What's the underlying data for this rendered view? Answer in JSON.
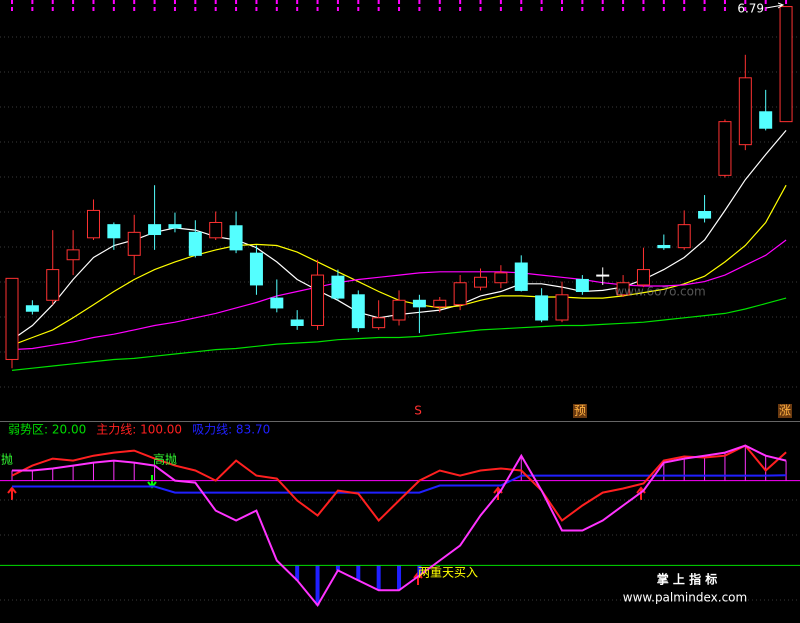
{
  "chart_data": [
    {
      "type": "candlestick",
      "open": [
        3.57,
        4.06,
        4.11,
        4.48,
        4.68,
        4.8,
        4.52,
        4.8,
        4.8,
        4.73,
        4.68,
        4.79,
        4.54,
        4.13,
        3.93,
        3.88,
        4.33,
        4.16,
        3.86,
        3.93,
        4.11,
        4.05,
        4.07,
        4.23,
        4.27,
        4.45,
        4.15,
        3.93,
        4.3,
        4.34,
        4.16,
        4.25,
        4.61,
        4.59,
        4.92,
        5.25,
        5.53,
        5.83,
        5.74
      ],
      "high": [
        4.31,
        4.11,
        4.75,
        4.75,
        5.03,
        4.82,
        4.89,
        5.16,
        4.91,
        4.84,
        4.92,
        4.92,
        4.61,
        4.3,
        4.02,
        4.48,
        4.39,
        4.2,
        4.11,
        4.2,
        4.16,
        4.14,
        4.34,
        4.4,
        4.43,
        4.52,
        4.22,
        4.28,
        4.34,
        4.41,
        4.34,
        4.59,
        4.71,
        4.93,
        5.07,
        5.76,
        6.35,
        6.03,
        6.79
      ],
      "low": [
        3.49,
        3.98,
        4.07,
        4.34,
        4.66,
        4.57,
        4.34,
        4.57,
        4.73,
        4.5,
        4.66,
        4.54,
        4.16,
        4.0,
        3.84,
        3.84,
        4.11,
        3.82,
        3.84,
        3.88,
        3.81,
        4.0,
        4.02,
        4.2,
        4.22,
        4.19,
        3.91,
        3.91,
        4.16,
        4.25,
        4.14,
        4.23,
        4.57,
        4.57,
        4.82,
        5.23,
        5.48,
        5.66,
        5.74
      ],
      "close": [
        4.31,
        4.01,
        4.39,
        4.57,
        4.93,
        4.68,
        4.73,
        4.71,
        4.77,
        4.52,
        4.82,
        4.57,
        4.25,
        4.04,
        3.88,
        4.34,
        4.13,
        3.86,
        3.95,
        4.11,
        4.05,
        4.11,
        4.27,
        4.32,
        4.36,
        4.2,
        3.93,
        4.16,
        4.19,
        4.34,
        4.27,
        4.39,
        4.59,
        4.8,
        4.86,
        5.74,
        6.14,
        5.68,
        6.79
      ],
      "colors": {
        "up": "#ff3232",
        "down": "#54ffff",
        "flat": "#ffffff"
      },
      "series": [
        {
          "color": "#ffffff",
          "values": [
            3.75,
            3.88,
            4.07,
            4.3,
            4.5,
            4.61,
            4.66,
            4.73,
            4.77,
            4.75,
            4.69,
            4.66,
            4.59,
            4.46,
            4.3,
            4.2,
            4.11,
            4.0,
            3.95,
            3.98,
            4.0,
            4.02,
            4.07,
            4.15,
            4.19,
            4.26,
            4.26,
            4.23,
            4.19,
            4.2,
            4.23,
            4.3,
            4.39,
            4.5,
            4.66,
            4.93,
            5.21,
            5.44,
            5.66
          ]
        },
        {
          "color": "#ffff00",
          "values": [
            3.7,
            3.77,
            3.84,
            3.95,
            4.07,
            4.19,
            4.3,
            4.39,
            4.46,
            4.52,
            4.57,
            4.61,
            4.62,
            4.61,
            4.55,
            4.46,
            4.37,
            4.28,
            4.19,
            4.11,
            4.07,
            4.04,
            4.06,
            4.11,
            4.15,
            4.15,
            4.14,
            4.14,
            4.13,
            4.13,
            4.15,
            4.18,
            4.21,
            4.26,
            4.33,
            4.46,
            4.61,
            4.82,
            5.16
          ]
        },
        {
          "color": "#ff00ff",
          "values": [
            3.66,
            3.67,
            3.7,
            3.73,
            3.77,
            3.8,
            3.84,
            3.88,
            3.91,
            3.95,
            3.99,
            4.04,
            4.09,
            4.15,
            4.19,
            4.23,
            4.27,
            4.3,
            4.32,
            4.34,
            4.36,
            4.37,
            4.37,
            4.37,
            4.37,
            4.36,
            4.34,
            4.32,
            4.3,
            4.27,
            4.25,
            4.24,
            4.24,
            4.25,
            4.28,
            4.34,
            4.43,
            4.52,
            4.66
          ]
        },
        {
          "color": "#00e000",
          "values": [
            3.47,
            3.49,
            3.51,
            3.53,
            3.55,
            3.57,
            3.58,
            3.6,
            3.62,
            3.64,
            3.66,
            3.67,
            3.69,
            3.71,
            3.72,
            3.73,
            3.75,
            3.76,
            3.77,
            3.77,
            3.78,
            3.8,
            3.82,
            3.84,
            3.85,
            3.86,
            3.87,
            3.88,
            3.88,
            3.89,
            3.9,
            3.91,
            3.93,
            3.95,
            3.97,
            3.99,
            4.03,
            4.08,
            4.13
          ]
        }
      ],
      "ylim": [
        3.2,
        6.85
      ],
      "max_label": 6.79,
      "markers": [
        "S",
        "预",
        "涨"
      ]
    },
    {
      "type": "indicator",
      "series": [
        {
          "name": "主力线: 100.00",
          "color": "#ff2020",
          "values": [
            83.5,
            90.6,
            95.5,
            94.1,
            97.6,
            99.8,
            101.2,
            95.5,
            90.6,
            87.1,
            80.0,
            94.1,
            83.5,
            81.4,
            65.9,
            55.3,
            72.9,
            70.8,
            51.8,
            65.9,
            80.0,
            87.1,
            83.5,
            87.1,
            88.5,
            87.1,
            72.9,
            51.8,
            62.4,
            71.5,
            74.4,
            77.9,
            94.1,
            97.0,
            96.3,
            97.6,
            104.7,
            87.1,
            100
          ]
        },
        {
          "name": "吸力线: 83.70",
          "color": "#2020ff",
          "values": [
            75.8,
            75.8,
            75.8,
            75.8,
            75.8,
            75.8,
            75.8,
            75.8,
            71.5,
            71.5,
            71.5,
            71.5,
            71.5,
            71.5,
            71.5,
            71.5,
            71.5,
            71.5,
            71.5,
            71.5,
            71.5,
            76.5,
            76.5,
            76.5,
            76.5,
            83.5,
            83.5,
            83.5,
            83.5,
            83.5,
            83.5,
            83.5,
            83.5,
            83.5,
            83.5,
            83.5,
            83.5,
            83.5,
            83.7
          ]
        },
        {
          "color": "#ff33ff",
          "values": [
            87.1,
            87.1,
            88.5,
            90.6,
            92.7,
            94.1,
            92.7,
            90.6,
            80.0,
            78.6,
            58.8,
            51.8,
            58.8,
            23.5,
            9.4,
            -8.2,
            16.5,
            9.4,
            2.4,
            2.4,
            12.9,
            23.5,
            34.1,
            55.3,
            72.9,
            97.6,
            72.9,
            44.7,
            44.7,
            51.8,
            62.4,
            72.9,
            92.7,
            95.5,
            97.6,
            99.8,
            104.7,
            97.6,
            94.1
          ]
        }
      ],
      "reference_lines": [
        {
          "name": "弱势区: 20.00",
          "value": 20,
          "color": "#00dd00"
        },
        {
          "value": 80,
          "color": "#ff00ff"
        }
      ],
      "ylim": [
        -20,
        120
      ],
      "annotations": [
        "高抛",
        "高抛",
        "两重天买入"
      ]
    }
  ],
  "watermarks": [
    "www.6o7o.com",
    "掌 上 指 标",
    "www.palmindex.com"
  ]
}
